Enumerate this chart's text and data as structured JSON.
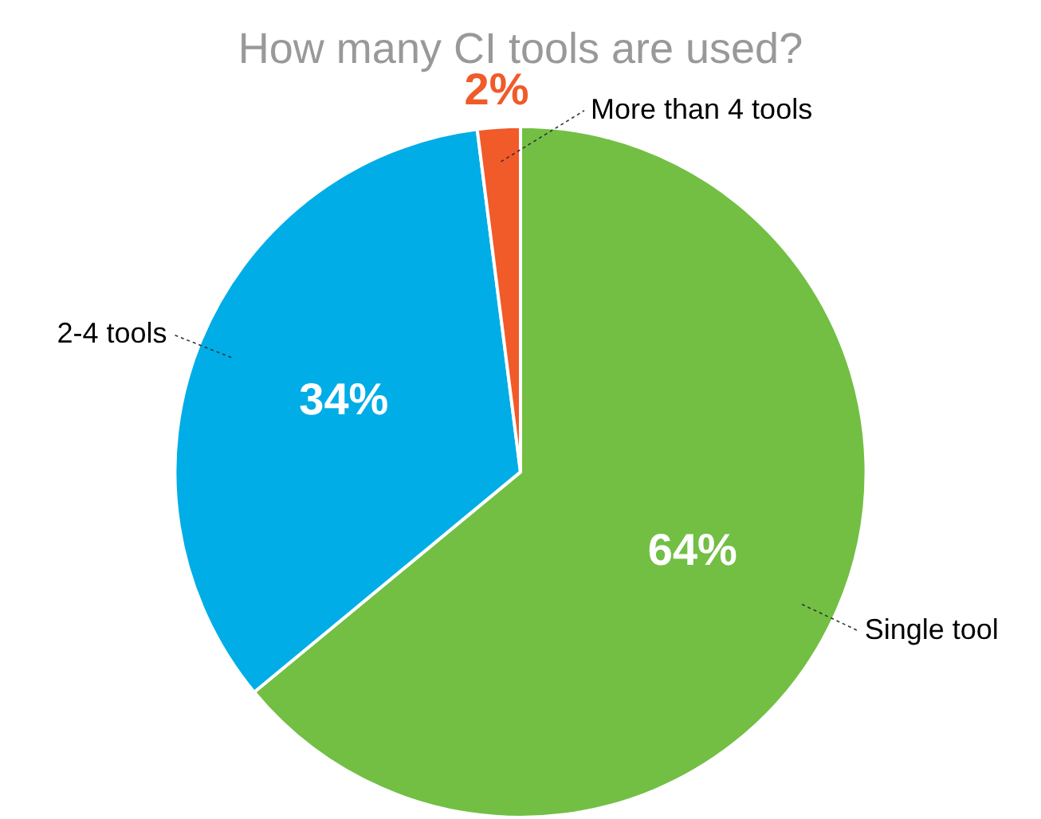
{
  "chart_data": {
    "type": "pie",
    "title": "How many CI tools are used?",
    "categories": [
      "Single tool",
      "2-4 tools",
      "More than 4 tools"
    ],
    "values": [
      64,
      34,
      2
    ],
    "colors": [
      "#72bf44",
      "#00ade6",
      "#f15a29"
    ],
    "value_labels": [
      "64%",
      "34%",
      "2%"
    ],
    "legend": false
  }
}
